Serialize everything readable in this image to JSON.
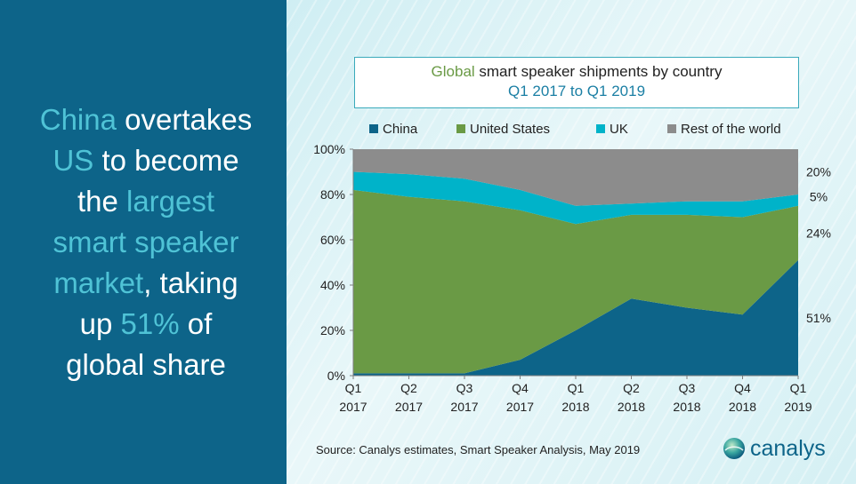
{
  "headline": {
    "h1": "China",
    "p1": " overtakes",
    "h2": "US",
    "p2": " to become",
    "p3": "the ",
    "h3": "largest",
    "h4": "smart speaker",
    "h5": "market",
    "p4": ", taking",
    "p5": "up ",
    "h6": "51%",
    "p6": " of",
    "p7": "global share",
    "colors": {
      "text": "#ffffff",
      "highlight": "#4fc3d6",
      "background": "#0d6489"
    }
  },
  "title_box": {
    "line1_highlight": "Global",
    "line1_rest": " smart speaker shipments by country",
    "line2": "Q1 2017 to Q1 2019"
  },
  "source": "Source: Canalys estimates, Smart Speaker Analysis, May 2019",
  "logo": {
    "icon": "canalys-globe-icon",
    "text": "canalys"
  },
  "chart_data": {
    "type": "area",
    "stacked": true,
    "categories": [
      [
        "Q1",
        "2017"
      ],
      [
        "Q2",
        "2017"
      ],
      [
        "Q3",
        "2017"
      ],
      [
        "Q4",
        "2017"
      ],
      [
        "Q1",
        "2018"
      ],
      [
        "Q2",
        "2018"
      ],
      [
        "Q3",
        "2018"
      ],
      [
        "Q4",
        "2018"
      ],
      [
        "Q1",
        "2019"
      ]
    ],
    "series": [
      {
        "name": "China",
        "color": "#0d6489",
        "values": [
          1,
          1,
          1,
          7,
          20,
          34,
          30,
          27,
          51
        ]
      },
      {
        "name": "United States",
        "color": "#6a9a45",
        "values": [
          81,
          78,
          76,
          66,
          47,
          37,
          41,
          43,
          24
        ]
      },
      {
        "name": "UK",
        "color": "#00b3c9",
        "values": [
          8,
          10,
          10,
          9,
          8,
          5,
          6,
          7,
          5
        ]
      },
      {
        "name": "Rest of the world",
        "color": "#8c8c8c",
        "values": [
          10,
          11,
          13,
          18,
          25,
          24,
          23,
          23,
          20
        ]
      }
    ],
    "end_labels": [
      "51%",
      "24%",
      "5%",
      "20%"
    ],
    "y_ticks": [
      "0%",
      "20%",
      "40%",
      "60%",
      "80%",
      "100%"
    ],
    "ylim": [
      0,
      100
    ],
    "legend_position": "top",
    "grid": false
  }
}
